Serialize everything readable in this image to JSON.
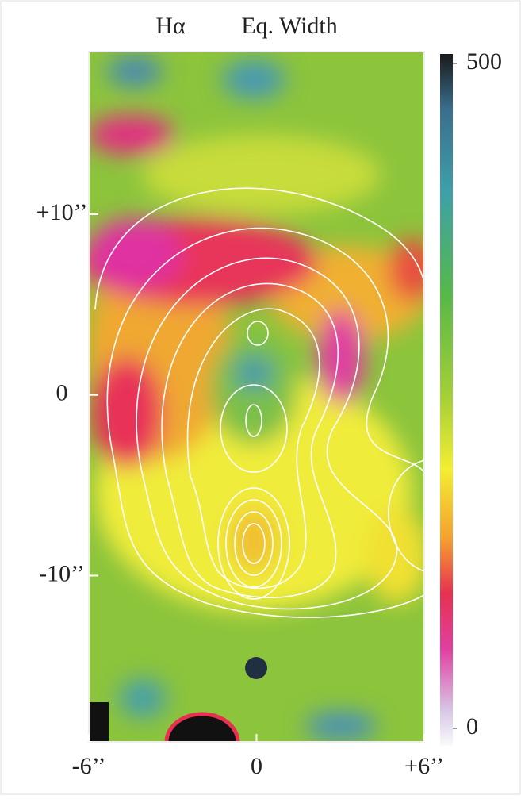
{
  "chart_data": {
    "type": "heatmap",
    "title": "Hα",
    "subtitle": "Eq. Width",
    "xlim": [
      -6,
      6
    ],
    "xticks": [
      {
        "value": -6,
        "label": "-6’’"
      },
      0,
      {
        "value": 6,
        "label": "+6’’"
      }
    ],
    "ylim": [
      -19.2,
      19
    ],
    "yticks": [
      {
        "value": 10,
        "label": "+10’’"
      },
      0,
      {
        "value": -10,
        "label": "-10’’"
      }
    ],
    "colorbar": {
      "lim": [
        0,
        500
      ],
      "ticks": [
        0,
        500
      ]
    }
  }
}
